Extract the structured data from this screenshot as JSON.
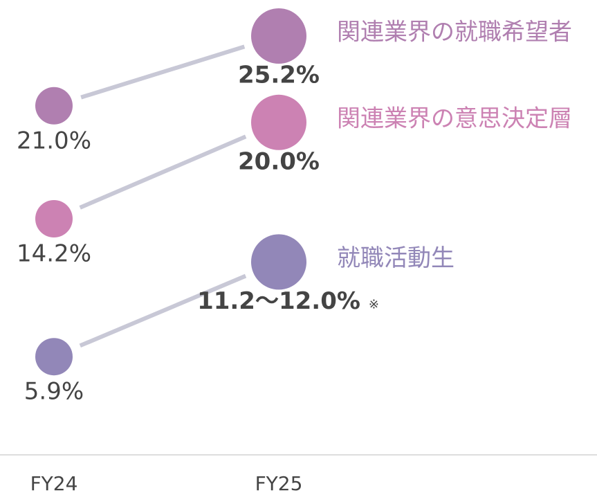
{
  "chart_data": {
    "type": "slope",
    "categories": [
      "FY24",
      "FY25"
    ],
    "series": [
      {
        "name": "関連業界の就職希望者",
        "color": "#b07fb0",
        "values": [
          21.0,
          25.2
        ],
        "value_labels": [
          "21.0%",
          "25.2%"
        ]
      },
      {
        "name": "関連業界の意思決定層",
        "color": "#cc82b3",
        "values": [
          14.2,
          20.0
        ],
        "value_labels": [
          "14.2%",
          "20.0%"
        ]
      },
      {
        "name": "就職活動生",
        "color": "#9287b8",
        "values": [
          5.9,
          11.6
        ],
        "value_labels": [
          "5.9%",
          "11.2〜12.0%"
        ]
      }
    ],
    "note": "※"
  }
}
